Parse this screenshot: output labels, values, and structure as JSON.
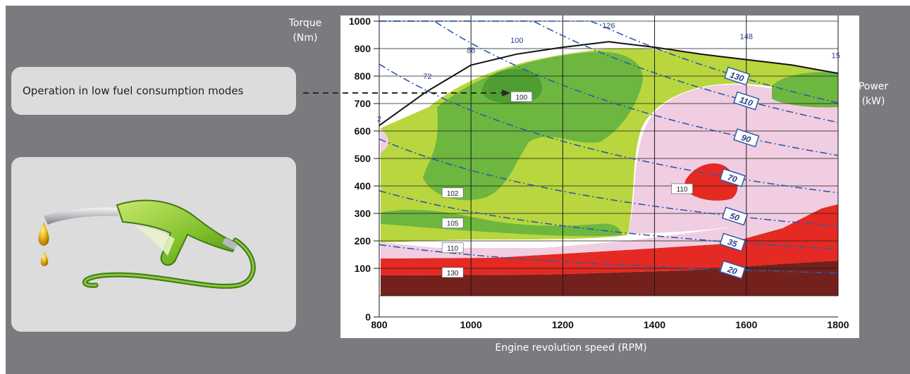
{
  "callout": {
    "text": "Operation in low fuel consumption modes"
  },
  "icons": {
    "fuel_nozzle": "fuel-nozzle-icon"
  },
  "axis_titles": {
    "torque": [
      "Torque",
      "(Nm)"
    ],
    "power": [
      "Power",
      "(kW)"
    ],
    "x": "Engine revolution speed (RPM)"
  },
  "colors": {
    "background": "#7a7b7e",
    "card": "#dcdcdd",
    "iso_lowest": "#4e9e32",
    "iso_low": "#6db640",
    "iso_mid": "#b9d63e",
    "iso_high": "#f1cde2",
    "iso_higher": "#e42a22",
    "iso_highest": "#74201c",
    "power_line": "#2e5aa8"
  },
  "chart_data": {
    "type": "contour",
    "x_ticks": [
      800,
      1000,
      1200,
      1400,
      1600,
      1800
    ],
    "y_ticks": [
      0,
      100,
      200,
      300,
      400,
      500,
      600,
      700,
      800,
      900,
      1000
    ],
    "xlim": [
      800,
      1800
    ],
    "ylim": [
      0,
      1000
    ],
    "xlabel": "Engine revolution speed (RPM)",
    "ylabel": "Torque (Nm)",
    "y2label": "Power (kW)",
    "grid": true,
    "full_load_curve": [
      [
        800,
        620
      ],
      [
        900,
        740
      ],
      [
        1000,
        840
      ],
      [
        1100,
        880
      ],
      [
        1200,
        905
      ],
      [
        1300,
        925
      ],
      [
        1400,
        905
      ],
      [
        1500,
        880
      ],
      [
        1600,
        860
      ],
      [
        1700,
        840
      ],
      [
        1800,
        810
      ]
    ],
    "full_load_labels": [
      {
        "label": "2",
        "x": 800,
        "y": 635
      },
      {
        "label": "72",
        "x": 905,
        "y": 790
      },
      {
        "label": "88",
        "x": 1000,
        "y": 885
      },
      {
        "label": "100",
        "x": 1100,
        "y": 920
      },
      {
        "label": "126",
        "x": 1300,
        "y": 975
      },
      {
        "label": "148",
        "x": 1600,
        "y": 935
      },
      {
        "label": "15",
        "x": 1795,
        "y": 865
      }
    ],
    "power_lines": [
      {
        "label": "130",
        "anchor": [
          1580,
          800
        ]
      },
      {
        "label": "110",
        "anchor": [
          1600,
          710
        ]
      },
      {
        "label": "90",
        "anchor": [
          1600,
          575
        ]
      },
      {
        "label": "70",
        "anchor": [
          1570,
          430
        ]
      },
      {
        "label": "50",
        "anchor": [
          1575,
          290
        ]
      },
      {
        "label": "35",
        "anchor": [
          1570,
          195
        ]
      },
      {
        "label": "20",
        "anchor": [
          1570,
          95
        ]
      }
    ],
    "bsfc_labels": [
      {
        "label": "100",
        "x": 1110,
        "y": 725
      },
      {
        "label": "102",
        "x": 960,
        "y": 375
      },
      {
        "label": "105",
        "x": 960,
        "y": 265
      },
      {
        "label": "110",
        "x": 960,
        "y": 175
      },
      {
        "label": "130",
        "x": 960,
        "y": 85
      },
      {
        "label": "110",
        "x": 1460,
        "y": 390
      }
    ]
  }
}
